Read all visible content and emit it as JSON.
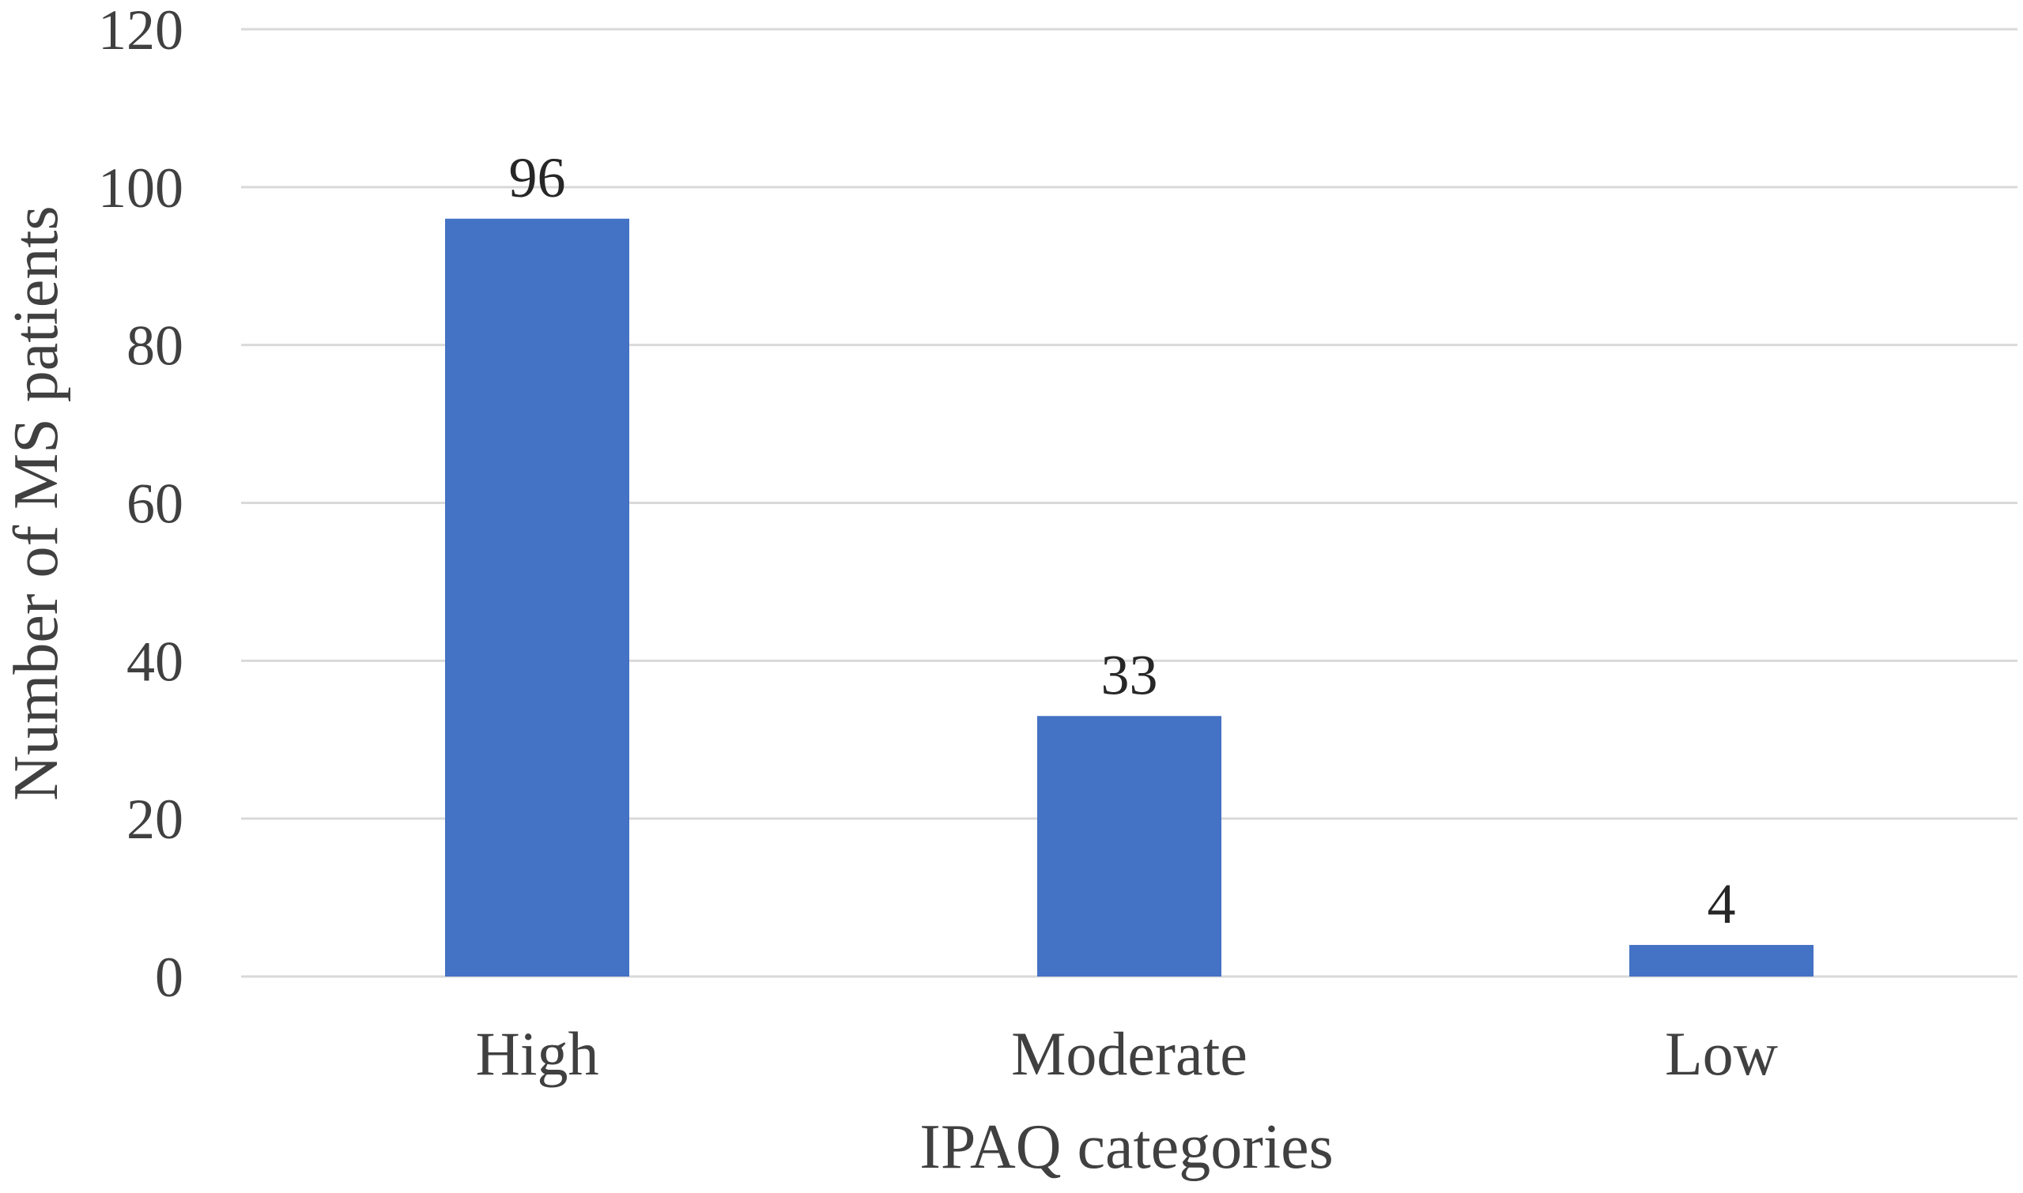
{
  "chart_data": {
    "type": "bar",
    "categories": [
      "High",
      "Moderate",
      "Low"
    ],
    "values": [
      96,
      33,
      4
    ],
    "xlabel": "IPAQ categories",
    "ylabel": "Number of MS patients",
    "ylim": [
      0,
      120
    ],
    "yticks": [
      0,
      20,
      40,
      60,
      80,
      100,
      120
    ],
    "grid": true,
    "legend": "none",
    "bar_color": "#4472C4",
    "grid_color": "#D9D9D9",
    "text_color": "#404040",
    "data_labels": true
  }
}
